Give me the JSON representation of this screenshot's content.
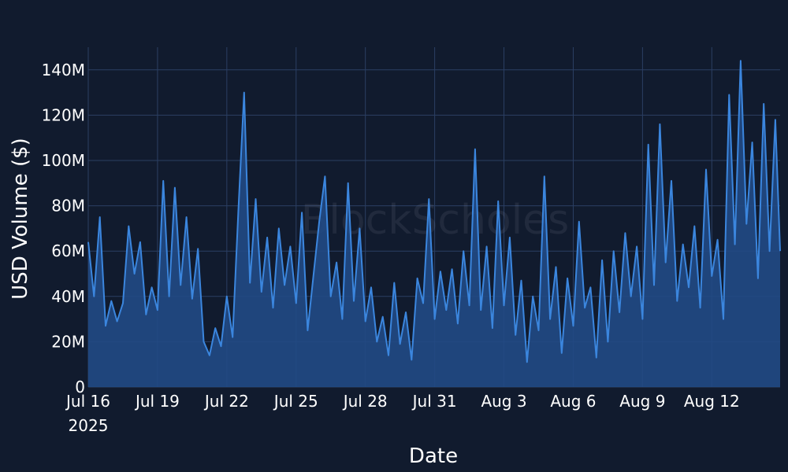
{
  "colors": {
    "background": "#111b2e",
    "grid": "#2b3f63",
    "line": "#3b86de",
    "area": "#214a85",
    "text": "#ffffff"
  },
  "watermark": "BlockScholes",
  "chart_data": {
    "type": "area",
    "title": "",
    "xlabel": "Date",
    "ylabel": "USD Volume ($)",
    "x_ticks": [
      {
        "date": "2025-07-16",
        "label": "Jul 16",
        "sublabel": "2025"
      },
      {
        "date": "2025-07-19",
        "label": "Jul 19"
      },
      {
        "date": "2025-07-22",
        "label": "Jul 22"
      },
      {
        "date": "2025-07-25",
        "label": "Jul 25"
      },
      {
        "date": "2025-07-28",
        "label": "Jul 28"
      },
      {
        "date": "2025-07-31",
        "label": "Jul 31"
      },
      {
        "date": "2025-08-03",
        "label": "Aug 3"
      },
      {
        "date": "2025-08-06",
        "label": "Aug 6"
      },
      {
        "date": "2025-08-09",
        "label": "Aug 9"
      },
      {
        "date": "2025-08-12",
        "label": "Aug 12"
      }
    ],
    "y_ticks": [
      {
        "value": 0,
        "label": "0"
      },
      {
        "value": 20000000,
        "label": "20M"
      },
      {
        "value": 40000000,
        "label": "40M"
      },
      {
        "value": 60000000,
        "label": "60M"
      },
      {
        "value": 80000000,
        "label": "80M"
      },
      {
        "value": 100000000,
        "label": "100M"
      },
      {
        "value": 120000000,
        "label": "120M"
      },
      {
        "value": 140000000,
        "label": "140M"
      }
    ],
    "xlim": [
      "2025-07-16 00:00",
      "2025-08-14 23:00"
    ],
    "ylim": [
      0,
      150000000
    ],
    "grid": true,
    "legend": "none",
    "series": [
      {
        "points": [
          [
            "2025-07-16 00:00",
            64000000
          ],
          [
            "2025-07-16 06:00",
            40000000
          ],
          [
            "2025-07-16 12:00",
            75000000
          ],
          [
            "2025-07-16 18:00",
            27000000
          ],
          [
            "2025-07-17 00:00",
            38000000
          ],
          [
            "2025-07-17 06:00",
            29000000
          ],
          [
            "2025-07-17 12:00",
            37000000
          ],
          [
            "2025-07-17 18:00",
            71000000
          ],
          [
            "2025-07-18 00:00",
            50000000
          ],
          [
            "2025-07-18 06:00",
            64000000
          ],
          [
            "2025-07-18 12:00",
            32000000
          ],
          [
            "2025-07-18 18:00",
            44000000
          ],
          [
            "2025-07-19 00:00",
            34000000
          ],
          [
            "2025-07-19 06:00",
            91000000
          ],
          [
            "2025-07-19 12:00",
            40000000
          ],
          [
            "2025-07-19 18:00",
            88000000
          ],
          [
            "2025-07-20 00:00",
            45000000
          ],
          [
            "2025-07-20 06:00",
            75000000
          ],
          [
            "2025-07-20 12:00",
            39000000
          ],
          [
            "2025-07-20 18:00",
            61000000
          ],
          [
            "2025-07-21 00:00",
            20000000
          ],
          [
            "2025-07-21 06:00",
            14000000
          ],
          [
            "2025-07-21 12:00",
            26000000
          ],
          [
            "2025-07-21 18:00",
            18000000
          ],
          [
            "2025-07-22 00:00",
            40000000
          ],
          [
            "2025-07-22 06:00",
            22000000
          ],
          [
            "2025-07-22 12:00",
            78000000
          ],
          [
            "2025-07-22 18:00",
            130000000
          ],
          [
            "2025-07-23 00:00",
            46000000
          ],
          [
            "2025-07-23 06:00",
            83000000
          ],
          [
            "2025-07-23 12:00",
            42000000
          ],
          [
            "2025-07-23 18:00",
            66000000
          ],
          [
            "2025-07-24 00:00",
            35000000
          ],
          [
            "2025-07-24 06:00",
            70000000
          ],
          [
            "2025-07-24 12:00",
            45000000
          ],
          [
            "2025-07-24 18:00",
            62000000
          ],
          [
            "2025-07-25 00:00",
            37000000
          ],
          [
            "2025-07-25 06:00",
            77000000
          ],
          [
            "2025-07-25 12:00",
            25000000
          ],
          [
            "2025-07-25 18:00",
            49000000
          ],
          [
            "2025-07-26 00:00",
            73000000
          ],
          [
            "2025-07-26 06:00",
            93000000
          ],
          [
            "2025-07-26 12:00",
            40000000
          ],
          [
            "2025-07-26 18:00",
            55000000
          ],
          [
            "2025-07-27 00:00",
            30000000
          ],
          [
            "2025-07-27 06:00",
            90000000
          ],
          [
            "2025-07-27 12:00",
            38000000
          ],
          [
            "2025-07-27 18:00",
            70000000
          ],
          [
            "2025-07-28 00:00",
            29000000
          ],
          [
            "2025-07-28 06:00",
            44000000
          ],
          [
            "2025-07-28 12:00",
            20000000
          ],
          [
            "2025-07-28 18:00",
            31000000
          ],
          [
            "2025-07-29 00:00",
            14000000
          ],
          [
            "2025-07-29 06:00",
            46000000
          ],
          [
            "2025-07-29 12:00",
            19000000
          ],
          [
            "2025-07-29 18:00",
            33000000
          ],
          [
            "2025-07-30 00:00",
            12000000
          ],
          [
            "2025-07-30 06:00",
            48000000
          ],
          [
            "2025-07-30 12:00",
            37000000
          ],
          [
            "2025-07-30 18:00",
            83000000
          ],
          [
            "2025-07-31 00:00",
            30000000
          ],
          [
            "2025-07-31 06:00",
            51000000
          ],
          [
            "2025-07-31 12:00",
            34000000
          ],
          [
            "2025-07-31 18:00",
            52000000
          ],
          [
            "2025-08-01 00:00",
            28000000
          ],
          [
            "2025-08-01 06:00",
            60000000
          ],
          [
            "2025-08-01 12:00",
            36000000
          ],
          [
            "2025-08-01 18:00",
            105000000
          ],
          [
            "2025-08-02 00:00",
            34000000
          ],
          [
            "2025-08-02 06:00",
            62000000
          ],
          [
            "2025-08-02 12:00",
            26000000
          ],
          [
            "2025-08-02 18:00",
            82000000
          ],
          [
            "2025-08-03 00:00",
            36000000
          ],
          [
            "2025-08-03 06:00",
            66000000
          ],
          [
            "2025-08-03 12:00",
            23000000
          ],
          [
            "2025-08-03 18:00",
            47000000
          ],
          [
            "2025-08-04 00:00",
            11000000
          ],
          [
            "2025-08-04 06:00",
            40000000
          ],
          [
            "2025-08-04 12:00",
            25000000
          ],
          [
            "2025-08-04 18:00",
            93000000
          ],
          [
            "2025-08-05 00:00",
            30000000
          ],
          [
            "2025-08-05 06:00",
            53000000
          ],
          [
            "2025-08-05 12:00",
            15000000
          ],
          [
            "2025-08-05 18:00",
            48000000
          ],
          [
            "2025-08-06 00:00",
            27000000
          ],
          [
            "2025-08-06 06:00",
            73000000
          ],
          [
            "2025-08-06 12:00",
            35000000
          ],
          [
            "2025-08-06 18:00",
            44000000
          ],
          [
            "2025-08-07 00:00",
            13000000
          ],
          [
            "2025-08-07 06:00",
            56000000
          ],
          [
            "2025-08-07 12:00",
            20000000
          ],
          [
            "2025-08-07 18:00",
            60000000
          ],
          [
            "2025-08-08 00:00",
            33000000
          ],
          [
            "2025-08-08 06:00",
            68000000
          ],
          [
            "2025-08-08 12:00",
            40000000
          ],
          [
            "2025-08-08 18:00",
            62000000
          ],
          [
            "2025-08-09 00:00",
            30000000
          ],
          [
            "2025-08-09 06:00",
            107000000
          ],
          [
            "2025-08-09 12:00",
            45000000
          ],
          [
            "2025-08-09 18:00",
            116000000
          ],
          [
            "2025-08-10 00:00",
            55000000
          ],
          [
            "2025-08-10 06:00",
            91000000
          ],
          [
            "2025-08-10 12:00",
            38000000
          ],
          [
            "2025-08-10 18:00",
            63000000
          ],
          [
            "2025-08-11 00:00",
            44000000
          ],
          [
            "2025-08-11 06:00",
            71000000
          ],
          [
            "2025-08-11 12:00",
            35000000
          ],
          [
            "2025-08-11 18:00",
            96000000
          ],
          [
            "2025-08-12 00:00",
            49000000
          ],
          [
            "2025-08-12 06:00",
            65000000
          ],
          [
            "2025-08-12 12:00",
            30000000
          ],
          [
            "2025-08-12 18:00",
            129000000
          ],
          [
            "2025-08-13 00:00",
            63000000
          ],
          [
            "2025-08-13 06:00",
            144000000
          ],
          [
            "2025-08-13 12:00",
            72000000
          ],
          [
            "2025-08-13 18:00",
            108000000
          ],
          [
            "2025-08-14 00:00",
            48000000
          ],
          [
            "2025-08-14 06:00",
            125000000
          ],
          [
            "2025-08-14 12:00",
            60000000
          ],
          [
            "2025-08-14 18:00",
            118000000
          ],
          [
            "2025-08-14 23:00",
            60000000
          ]
        ]
      }
    ]
  }
}
